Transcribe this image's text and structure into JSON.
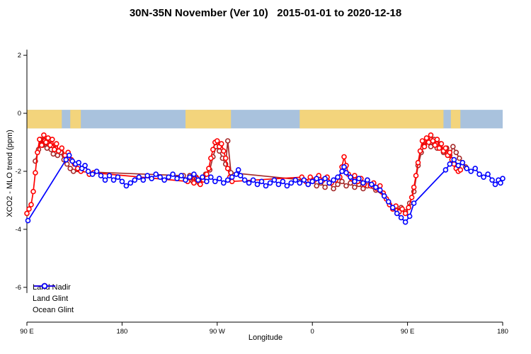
{
  "title": "30N-35N November (Ver 10)   2015-01-01 to 2020-12-18",
  "chart_data": {
    "type": "line",
    "title": "30N-35N November (Ver 10)   2015-01-01 to 2020-12-18",
    "xlabel": "Longitude",
    "ylabel": "XCO2 - MLO trend (ppm)",
    "xlim": [
      90,
      540
    ],
    "ylim": [
      -7.2,
      2.93
    ],
    "grid": false,
    "legend_position": "bottom-left",
    "x_ticks": [
      {
        "pos": 90,
        "label": "90 E"
      },
      {
        "pos": 180,
        "label": "180"
      },
      {
        "pos": 270,
        "label": "90 W"
      },
      {
        "pos": 360,
        "label": "0"
      },
      {
        "pos": 450,
        "label": "90 E"
      },
      {
        "pos": 540,
        "label": "180"
      }
    ],
    "y_ticks": [
      {
        "pos": 2,
        "label": "2"
      },
      {
        "pos": 0,
        "label": "0"
      },
      {
        "pos": -2,
        "label": "-2"
      },
      {
        "pos": -4,
        "label": "-4"
      },
      {
        "pos": -6,
        "label": "-6"
      }
    ],
    "map_strip": {
      "y_top": 0.12,
      "y_bottom": -0.52,
      "ocean_color": "#a9c2dd",
      "land_color": "#f3d47c",
      "land_segments": [
        [
          90,
          123
        ],
        [
          131,
          141
        ],
        [
          240,
          283
        ],
        [
          348,
          484
        ],
        [
          491,
          500
        ]
      ]
    },
    "series": [
      {
        "name": "Land Nadir",
        "color": "#a52a2a",
        "points": [
          [
            98,
            -1.65
          ],
          [
            101,
            -1.25
          ],
          [
            103,
            -0.9
          ],
          [
            105,
            -1.1
          ],
          [
            107,
            -0.95
          ],
          [
            109,
            -1.2
          ],
          [
            111,
            -1.05
          ],
          [
            113,
            -1.25
          ],
          [
            115,
            -1.4
          ],
          [
            117,
            -1.2
          ],
          [
            119,
            -1.45
          ],
          [
            122,
            -1.35
          ],
          [
            125,
            -1.6
          ],
          [
            128,
            -1.75
          ],
          [
            131,
            -1.9
          ],
          [
            134,
            -2.0
          ],
          [
            238,
            -2.15
          ],
          [
            241,
            -2.3
          ],
          [
            244,
            -2.15
          ],
          [
            247,
            -2.35
          ],
          [
            250,
            -2.2
          ],
          [
            253,
            -2.4
          ],
          [
            256,
            -2.25
          ],
          [
            259,
            -2.1
          ],
          [
            263,
            -1.95
          ],
          [
            266,
            -1.5
          ],
          [
            269,
            -1.15
          ],
          [
            272,
            -1.3
          ],
          [
            275,
            -1.55
          ],
          [
            278,
            -1.75
          ],
          [
            280,
            -0.95
          ],
          [
            283,
            -2.05
          ],
          [
            352,
            -2.3
          ],
          [
            356,
            -2.45
          ],
          [
            360,
            -2.3
          ],
          [
            364,
            -2.5
          ],
          [
            368,
            -2.4
          ],
          [
            372,
            -2.55
          ],
          [
            376,
            -2.4
          ],
          [
            380,
            -2.6
          ],
          [
            384,
            -2.45
          ],
          [
            388,
            -2.35
          ],
          [
            392,
            -2.5
          ],
          [
            396,
            -2.4
          ],
          [
            400,
            -2.55
          ],
          [
            404,
            -2.45
          ],
          [
            408,
            -2.6
          ],
          [
            412,
            -2.5
          ],
          [
            420,
            -2.65
          ],
          [
            428,
            -2.85
          ],
          [
            432,
            -3.05
          ],
          [
            436,
            -3.25
          ],
          [
            440,
            -3.35
          ],
          [
            444,
            -3.25
          ],
          [
            448,
            -3.4
          ],
          [
            452,
            -3.1
          ],
          [
            456,
            -2.7
          ],
          [
            460,
            -1.8
          ],
          [
            463,
            -1.35
          ],
          [
            466,
            -1.1
          ],
          [
            469,
            -0.95
          ],
          [
            472,
            -1.15
          ],
          [
            475,
            -0.9
          ],
          [
            478,
            -1.2
          ],
          [
            481,
            -1.05
          ],
          [
            484,
            -1.35
          ],
          [
            487,
            -1.2
          ],
          [
            490,
            -1.45
          ],
          [
            493,
            -1.15
          ],
          [
            496,
            -1.35
          ],
          [
            499,
            -1.55
          ],
          [
            502,
            -1.7
          ],
          [
            505,
            -1.85
          ]
        ]
      },
      {
        "name": "Land Glint",
        "color": "#ff0000",
        "points": [
          [
            90,
            -3.45
          ],
          [
            92,
            -3.3
          ],
          [
            94,
            -3.15
          ],
          [
            96,
            -2.7
          ],
          [
            98,
            -2.05
          ],
          [
            100,
            -1.35
          ],
          [
            102,
            -0.9
          ],
          [
            104,
            -1.1
          ],
          [
            106,
            -0.75
          ],
          [
            108,
            -1.0
          ],
          [
            110,
            -0.85
          ],
          [
            112,
            -1.1
          ],
          [
            114,
            -0.9
          ],
          [
            116,
            -1.25
          ],
          [
            118,
            -1.05
          ],
          [
            120,
            -1.3
          ],
          [
            123,
            -1.2
          ],
          [
            126,
            -1.45
          ],
          [
            129,
            -1.35
          ],
          [
            132,
            -1.6
          ],
          [
            135,
            -1.75
          ],
          [
            138,
            -1.9
          ],
          [
            141,
            -2.0
          ],
          [
            145,
            -1.95
          ],
          [
            149,
            -2.1
          ],
          [
            153,
            -2.05
          ],
          [
            242,
            -2.35
          ],
          [
            245,
            -2.2
          ],
          [
            248,
            -2.4
          ],
          [
            251,
            -2.25
          ],
          [
            254,
            -2.45
          ],
          [
            257,
            -2.3
          ],
          [
            260,
            -2.1
          ],
          [
            262,
            -1.9
          ],
          [
            264,
            -1.55
          ],
          [
            266,
            -1.25
          ],
          [
            268,
            -1.0
          ],
          [
            270,
            -0.95
          ],
          [
            272,
            -1.15
          ],
          [
            274,
            -1.05
          ],
          [
            276,
            -1.3
          ],
          [
            278,
            -1.55
          ],
          [
            280,
            -1.9
          ],
          [
            282,
            -2.2
          ],
          [
            284,
            -2.35
          ],
          [
            350,
            -2.2
          ],
          [
            354,
            -2.35
          ],
          [
            358,
            -2.2
          ],
          [
            362,
            -2.3
          ],
          [
            366,
            -2.15
          ],
          [
            370,
            -2.3
          ],
          [
            374,
            -2.2
          ],
          [
            378,
            -2.4
          ],
          [
            382,
            -2.3
          ],
          [
            386,
            -2.2
          ],
          [
            388,
            -1.85
          ],
          [
            390,
            -1.5
          ],
          [
            392,
            -1.8
          ],
          [
            394,
            -2.1
          ],
          [
            397,
            -2.25
          ],
          [
            400,
            -2.15
          ],
          [
            403,
            -2.35
          ],
          [
            406,
            -2.25
          ],
          [
            409,
            -2.45
          ],
          [
            412,
            -2.3
          ],
          [
            415,
            -2.5
          ],
          [
            418,
            -2.4
          ],
          [
            421,
            -2.6
          ],
          [
            424,
            -2.5
          ],
          [
            427,
            -2.75
          ],
          [
            430,
            -2.95
          ],
          [
            433,
            -3.15
          ],
          [
            436,
            -3.3
          ],
          [
            439,
            -3.2
          ],
          [
            442,
            -3.4
          ],
          [
            445,
            -3.3
          ],
          [
            448,
            -3.45
          ],
          [
            451,
            -3.25
          ],
          [
            454,
            -2.9
          ],
          [
            456,
            -2.55
          ],
          [
            458,
            -2.15
          ],
          [
            460,
            -1.7
          ],
          [
            462,
            -1.3
          ],
          [
            464,
            -0.95
          ],
          [
            466,
            -1.15
          ],
          [
            468,
            -0.85
          ],
          [
            470,
            -1.0
          ],
          [
            472,
            -0.75
          ],
          [
            474,
            -0.95
          ],
          [
            476,
            -1.1
          ],
          [
            478,
            -0.9
          ],
          [
            480,
            -1.2
          ],
          [
            482,
            -1.05
          ],
          [
            484,
            -1.3
          ],
          [
            486,
            -1.2
          ],
          [
            488,
            -1.45
          ],
          [
            490,
            -1.35
          ],
          [
            492,
            -1.6
          ],
          [
            494,
            -1.75
          ],
          [
            496,
            -1.9
          ],
          [
            498,
            -2.0
          ],
          [
            500,
            -1.95
          ]
        ]
      },
      {
        "name": "Ocean Glint",
        "color": "#0000ff",
        "points": [
          [
            91,
            -3.7
          ],
          [
            127,
            -1.6
          ],
          [
            130,
            -1.45
          ],
          [
            133,
            -1.65
          ],
          [
            136,
            -1.75
          ],
          [
            139,
            -1.7
          ],
          [
            142,
            -1.9
          ],
          [
            145,
            -1.8
          ],
          [
            148,
            -2.0
          ],
          [
            152,
            -2.1
          ],
          [
            156,
            -2.0
          ],
          [
            160,
            -2.15
          ],
          [
            164,
            -2.3
          ],
          [
            168,
            -2.15
          ],
          [
            172,
            -2.3
          ],
          [
            176,
            -2.2
          ],
          [
            180,
            -2.35
          ],
          [
            184,
            -2.5
          ],
          [
            188,
            -2.4
          ],
          [
            192,
            -2.3
          ],
          [
            196,
            -2.2
          ],
          [
            200,
            -2.3
          ],
          [
            204,
            -2.15
          ],
          [
            208,
            -2.25
          ],
          [
            212,
            -2.1
          ],
          [
            216,
            -2.2
          ],
          [
            220,
            -2.3
          ],
          [
            224,
            -2.2
          ],
          [
            228,
            -2.1
          ],
          [
            232,
            -2.25
          ],
          [
            236,
            -2.15
          ],
          [
            240,
            -2.3
          ],
          [
            244,
            -2.2
          ],
          [
            248,
            -2.1
          ],
          [
            252,
            -2.3
          ],
          [
            256,
            -2.2
          ],
          [
            260,
            -2.35
          ],
          [
            264,
            -2.2
          ],
          [
            268,
            -2.35
          ],
          [
            272,
            -2.25
          ],
          [
            276,
            -2.4
          ],
          [
            280,
            -2.3
          ],
          [
            284,
            -2.2
          ],
          [
            288,
            -2.1
          ],
          [
            290,
            -1.95
          ],
          [
            292,
            -2.15
          ],
          [
            296,
            -2.3
          ],
          [
            300,
            -2.4
          ],
          [
            304,
            -2.3
          ],
          [
            308,
            -2.45
          ],
          [
            312,
            -2.35
          ],
          [
            316,
            -2.5
          ],
          [
            320,
            -2.4
          ],
          [
            324,
            -2.3
          ],
          [
            328,
            -2.45
          ],
          [
            332,
            -2.35
          ],
          [
            336,
            -2.5
          ],
          [
            340,
            -2.4
          ],
          [
            344,
            -2.3
          ],
          [
            348,
            -2.4
          ],
          [
            352,
            -2.3
          ],
          [
            356,
            -2.45
          ],
          [
            360,
            -2.35
          ],
          [
            364,
            -2.25
          ],
          [
            368,
            -2.35
          ],
          [
            372,
            -2.25
          ],
          [
            376,
            -2.4
          ],
          [
            380,
            -2.3
          ],
          [
            384,
            -2.2
          ],
          [
            388,
            -2.0
          ],
          [
            390,
            -1.85
          ],
          [
            392,
            -2.05
          ],
          [
            396,
            -2.2
          ],
          [
            400,
            -2.35
          ],
          [
            404,
            -2.25
          ],
          [
            408,
            -2.4
          ],
          [
            412,
            -2.3
          ],
          [
            416,
            -2.45
          ],
          [
            420,
            -2.55
          ],
          [
            424,
            -2.65
          ],
          [
            428,
            -2.85
          ],
          [
            432,
            -3.05
          ],
          [
            436,
            -3.25
          ],
          [
            440,
            -3.45
          ],
          [
            444,
            -3.6
          ],
          [
            448,
            -3.75
          ],
          [
            452,
            -3.55
          ],
          [
            456,
            -3.1
          ],
          [
            486,
            -1.95
          ],
          [
            490,
            -1.75
          ],
          [
            494,
            -1.6
          ],
          [
            498,
            -1.8
          ],
          [
            502,
            -1.7
          ],
          [
            506,
            -1.9
          ],
          [
            510,
            -2.0
          ],
          [
            514,
            -1.9
          ],
          [
            518,
            -2.1
          ],
          [
            522,
            -2.2
          ],
          [
            526,
            -2.1
          ],
          [
            530,
            -2.3
          ],
          [
            533,
            -2.45
          ],
          [
            536,
            -2.3
          ],
          [
            538,
            -2.4
          ],
          [
            540,
            -2.25
          ]
        ]
      }
    ]
  }
}
